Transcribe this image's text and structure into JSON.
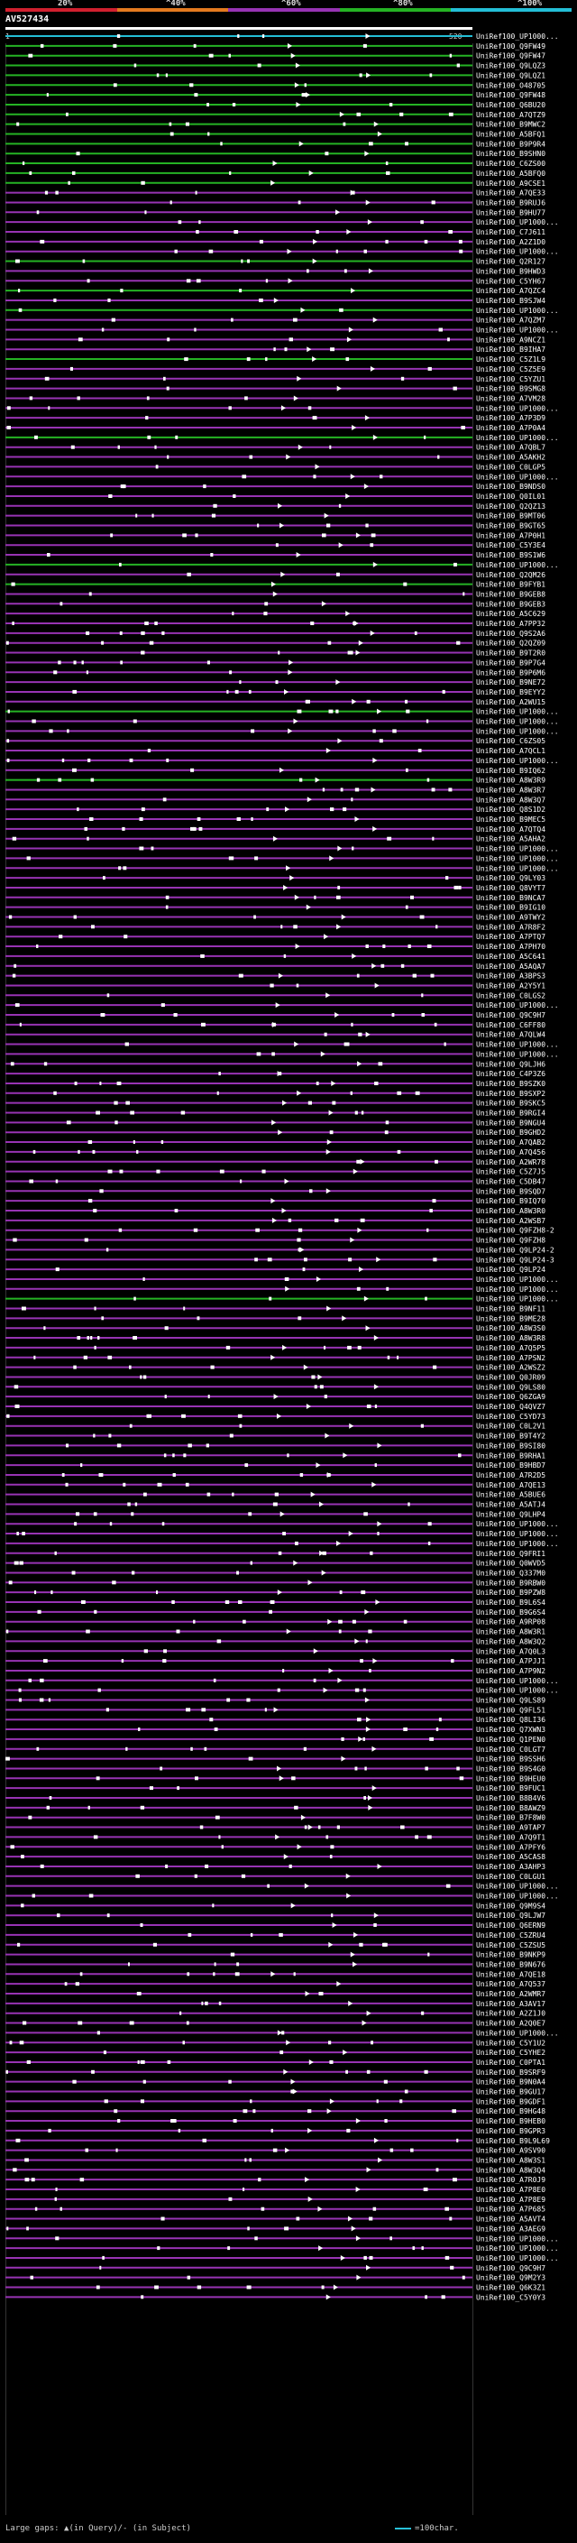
{
  "scale": {
    "labels": [
      "20%",
      "^40%",
      "^60%",
      "^80%",
      "^100%"
    ],
    "colors": [
      "#d1202f",
      "#e47a1f",
      "#9733b3",
      "#25b324",
      "#23bed6"
    ]
  },
  "query": {
    "title": "AV527434",
    "start": "1",
    "end": "520"
  },
  "footer": {
    "text": "Large gaps: ▲(in Query)/- (in Subject)",
    "scale_text": "=100char."
  },
  "chart_data": {
    "type": "alignment-overview",
    "title": "AV527434",
    "query_length": 520,
    "identity_bins": [
      {
        "label": "20%",
        "color": "#d1202f"
      },
      {
        "label": "^40%",
        "color": "#e47a1f"
      },
      {
        "label": "^60%",
        "color": "#9733b3"
      },
      {
        "label": "^80%",
        "color": "#25b324"
      },
      {
        "label": "^100%",
        "color": "#23bed6"
      }
    ],
    "hits": [
      {
        "label": "UniRef100_UP1000...",
        "bin": 4
      },
      {
        "label": "UniRef100_Q9FW49",
        "bin": 3
      },
      {
        "label": "UniRef100_Q9FW47",
        "bin": 3
      },
      {
        "label": "UniRef100_Q9LQZ3",
        "bin": 3
      },
      {
        "label": "UniRef100_Q9LQZ1",
        "bin": 3
      },
      {
        "label": "UniRef100_O48705",
        "bin": 3
      },
      {
        "label": "UniRef100_Q9FW48",
        "bin": 3
      },
      {
        "label": "UniRef100_Q6BU20",
        "bin": 3
      },
      {
        "label": "UniRef100_A7QTZ9",
        "bin": 3
      },
      {
        "label": "UniRef100_B9MWC2",
        "bin": 3
      },
      {
        "label": "UniRef100_A5BFQ1",
        "bin": 3
      },
      {
        "label": "UniRef100_B9P9R4",
        "bin": 3
      },
      {
        "label": "UniRef100_B9SHN0",
        "bin": 3
      },
      {
        "label": "UniRef100_C6ZS00",
        "bin": 3
      },
      {
        "label": "UniRef100_A5BFQ0",
        "bin": 3
      },
      {
        "label": "UniRef100_A9CSE1",
        "bin": 3
      },
      {
        "label": "UniRef100_A7QE33",
        "bin": 2
      },
      {
        "label": "UniRef100_B9RUJ6",
        "bin": 2
      },
      {
        "label": "UniRef100_B9HU77",
        "bin": 2
      },
      {
        "label": "UniRef100_UP1000...",
        "bin": 2
      },
      {
        "label": "UniRef100_C7J611",
        "bin": 2
      },
      {
        "label": "UniRef100_A2Z1D0",
        "bin": 2
      },
      {
        "label": "UniRef100_UP1000...",
        "bin": 2
      },
      {
        "label": "UniRef100_Q2R127",
        "bin": 3
      },
      {
        "label": "UniRef100_B9HWD3",
        "bin": 2
      },
      {
        "label": "UniRef100_C5YH67",
        "bin": 2
      },
      {
        "label": "UniRef100_A7QZC4",
        "bin": 3
      },
      {
        "label": "UniRef100_B9SJW4",
        "bin": 2
      },
      {
        "label": "UniRef100_UP1000...",
        "bin": 3
      },
      {
        "label": "UniRef100_A7QZM7",
        "bin": 2
      },
      {
        "label": "UniRef100_UP1000...",
        "bin": 2
      },
      {
        "label": "UniRef100_A9NCZ1",
        "bin": 2
      },
      {
        "label": "UniRef100_B9IHA7",
        "bin": 2
      },
      {
        "label": "UniRef100_C5Z1L9",
        "bin": 3
      },
      {
        "label": "UniRef100_C5Z5E9",
        "bin": 2
      },
      {
        "label": "UniRef100_C5YZU1",
        "bin": 2
      },
      {
        "label": "UniRef100_B9SMG8",
        "bin": 2
      },
      {
        "label": "UniRef100_A7VM28",
        "bin": 2
      },
      {
        "label": "UniRef100_UP1000...",
        "bin": 2
      },
      {
        "label": "UniRef100_A7P3D9",
        "bin": 2
      },
      {
        "label": "UniRef100_A7P0A4",
        "bin": 2
      },
      {
        "label": "UniRef100_UP1000...",
        "bin": 3
      },
      {
        "label": "UniRef100_A7QBL7",
        "bin": 2
      },
      {
        "label": "UniRef100_A5AKH2",
        "bin": 2
      },
      {
        "label": "UniRef100_C0LGP5",
        "bin": 2
      },
      {
        "label": "UniRef100_UP1000...",
        "bin": 2
      },
      {
        "label": "UniRef100_B9NDS0",
        "bin": 2
      },
      {
        "label": "UniRef100_Q0IL01",
        "bin": 2
      },
      {
        "label": "UniRef100_Q2QZ13",
        "bin": 2
      },
      {
        "label": "UniRef100_B9MT06",
        "bin": 2
      },
      {
        "label": "UniRef100_B9GT65",
        "bin": 2
      },
      {
        "label": "UniRef100_A7P0H1",
        "bin": 2
      },
      {
        "label": "UniRef100_C5Y3E4",
        "bin": 2
      },
      {
        "label": "UniRef100_B9S1W6",
        "bin": 2
      },
      {
        "label": "UniRef100_UP1000...",
        "bin": 3
      },
      {
        "label": "UniRef100_Q2QM26",
        "bin": 2
      },
      {
        "label": "UniRef100_B9FYB1",
        "bin": 3
      },
      {
        "label": "UniRef100_B9GEB8",
        "bin": 2
      },
      {
        "label": "UniRef100_B9GEB3",
        "bin": 2
      },
      {
        "label": "UniRef100_A5C629",
        "bin": 2
      },
      {
        "label": "UniRef100_A7PP32",
        "bin": 2
      },
      {
        "label": "UniRef100_Q9S2A6",
        "bin": 2
      },
      {
        "label": "UniRef100_Q2QZ09",
        "bin": 2
      },
      {
        "label": "UniRef100_B9T2R0",
        "bin": 2
      },
      {
        "label": "UniRef100_B9P7G4",
        "bin": 2
      },
      {
        "label": "UniRef100_B9P6M6",
        "bin": 2
      },
      {
        "label": "UniRef100_B9NE72",
        "bin": 2
      },
      {
        "label": "UniRef100_B9EYY2",
        "bin": 2
      },
      {
        "label": "UniRef100_A2WU15",
        "bin": 2
      },
      {
        "label": "UniRef100_UP1000...",
        "bin": 3
      },
      {
        "label": "UniRef100_UP1000...",
        "bin": 2
      },
      {
        "label": "UniRef100_UP1000...",
        "bin": 2
      },
      {
        "label": "UniRef100_C6ZS05",
        "bin": 2
      },
      {
        "label": "UniRef100_A7QCL1",
        "bin": 2
      },
      {
        "label": "UniRef100_UP1000...",
        "bin": 2
      },
      {
        "label": "UniRef100_B9IQ62",
        "bin": 2
      },
      {
        "label": "UniRef100_A8W3R9",
        "bin": 3
      },
      {
        "label": "UniRef100_A8W3R7",
        "bin": 2
      },
      {
        "label": "UniRef100_A8W3Q7",
        "bin": 2
      },
      {
        "label": "UniRef100_Q8S1D2",
        "bin": 2
      },
      {
        "label": "UniRef100_B9MEC5",
        "bin": 2
      },
      {
        "label": "UniRef100_A7QTQ4",
        "bin": 2
      },
      {
        "label": "UniRef100_A5AHA2",
        "bin": 2
      },
      {
        "label": "UniRef100_UP1000...",
        "bin": 2
      },
      {
        "label": "UniRef100_UP1000...",
        "bin": 2
      },
      {
        "label": "UniRef100_UP1000...",
        "bin": 2
      },
      {
        "label": "UniRef100_Q9LY03",
        "bin": 2
      },
      {
        "label": "UniRef100_Q8VYT7",
        "bin": 2
      },
      {
        "label": "UniRef100_B9NCA7",
        "bin": 2
      },
      {
        "label": "UniRef100_B9IG10",
        "bin": 2
      },
      {
        "label": "UniRef100_A9TWY2",
        "bin": 2
      },
      {
        "label": "UniRef100_A7R8F2",
        "bin": 2
      },
      {
        "label": "UniRef100_A7PTQ7",
        "bin": 2
      },
      {
        "label": "UniRef100_A7PH70",
        "bin": 2
      },
      {
        "label": "UniRef100_A5C641",
        "bin": 2
      },
      {
        "label": "UniRef100_A5AQA7",
        "bin": 2
      },
      {
        "label": "UniRef100_A3BPS3",
        "bin": 2
      },
      {
        "label": "UniRef100_A2Y5Y1",
        "bin": 2
      },
      {
        "label": "UniRef100_C0LGS2",
        "bin": 2
      },
      {
        "label": "UniRef100_UP1000...",
        "bin": 2
      },
      {
        "label": "UniRef100_Q9C9H7",
        "bin": 2
      },
      {
        "label": "UniRef100_C6FF80",
        "bin": 2
      },
      {
        "label": "UniRef100_A7QLW4",
        "bin": 2
      },
      {
        "label": "UniRef100_UP1000...",
        "bin": 2
      },
      {
        "label": "UniRef100_UP1000...",
        "bin": 2
      },
      {
        "label": "UniRef100_Q9LJH6",
        "bin": 2
      },
      {
        "label": "UniRef100_C4P3Z6",
        "bin": 2
      },
      {
        "label": "UniRef100_B9SZK0",
        "bin": 2
      },
      {
        "label": "UniRef100_B9SXP2",
        "bin": 2
      },
      {
        "label": "UniRef100_B9SKC5",
        "bin": 2
      },
      {
        "label": "UniRef100_B9RGI4",
        "bin": 2
      },
      {
        "label": "UniRef100_B9NGU4",
        "bin": 2
      },
      {
        "label": "UniRef100_B9GHD2",
        "bin": 2
      },
      {
        "label": "UniRef100_A7QAB2",
        "bin": 2
      },
      {
        "label": "UniRef100_A7Q456",
        "bin": 2
      },
      {
        "label": "UniRef100_A2WR78",
        "bin": 2
      },
      {
        "label": "UniRef100_C5Z7J5",
        "bin": 2
      },
      {
        "label": "UniRef100_C5DB47",
        "bin": 2
      },
      {
        "label": "UniRef100_B9SQD7",
        "bin": 2
      },
      {
        "label": "UniRef100_B9IQ70",
        "bin": 2
      },
      {
        "label": "UniRef100_A8W3R0",
        "bin": 2
      },
      {
        "label": "UniRef100_A2WSB7",
        "bin": 2
      },
      {
        "label": "UniRef100_Q9FZH8-2",
        "bin": 2
      },
      {
        "label": "UniRef100_Q9FZH8",
        "bin": 2
      },
      {
        "label": "UniRef100_Q9LP24-2",
        "bin": 2
      },
      {
        "label": "UniRef100_Q9LP24-3",
        "bin": 2
      },
      {
        "label": "UniRef100_Q9LP24",
        "bin": 2
      },
      {
        "label": "UniRef100_UP1000...",
        "bin": 2
      },
      {
        "label": "UniRef100_UP1000...",
        "bin": 2
      },
      {
        "label": "UniRef100_UP1000...",
        "bin": 3
      },
      {
        "label": "UniRef100_B9NF11",
        "bin": 2
      },
      {
        "label": "UniRef100_B9ME28",
        "bin": 2
      },
      {
        "label": "UniRef100_A8W3S0",
        "bin": 2
      },
      {
        "label": "UniRef100_A8W3R8",
        "bin": 2
      },
      {
        "label": "UniRef100_A7Q5P5",
        "bin": 2
      },
      {
        "label": "UniRef100_A7PSN2",
        "bin": 2
      },
      {
        "label": "UniRef100_A2WSZ2",
        "bin": 2
      },
      {
        "label": "UniRef100_Q0JR09",
        "bin": 2
      },
      {
        "label": "UniRef100_Q9LS80",
        "bin": 2
      },
      {
        "label": "UniRef100_Q6ZGA9",
        "bin": 2
      },
      {
        "label": "UniRef100_Q4QVZ7",
        "bin": 2
      },
      {
        "label": "UniRef100_C5YD73",
        "bin": 2
      },
      {
        "label": "UniRef100_C0L2V1",
        "bin": 2
      },
      {
        "label": "UniRef100_B9T4Y2",
        "bin": 2
      },
      {
        "label": "UniRef100_B9SI80",
        "bin": 2
      },
      {
        "label": "UniRef100_B9RHA1",
        "bin": 2
      },
      {
        "label": "UniRef100_B9HBD7",
        "bin": 2
      },
      {
        "label": "UniRef100_A7R2D5",
        "bin": 2
      },
      {
        "label": "UniRef100_A7QE13",
        "bin": 2
      },
      {
        "label": "UniRef100_A5BUE6",
        "bin": 2
      },
      {
        "label": "UniRef100_A5ATJ4",
        "bin": 2
      },
      {
        "label": "UniRef100_Q9LHP4",
        "bin": 2
      },
      {
        "label": "UniRef100_UP1000...",
        "bin": 2
      },
      {
        "label": "UniRef100_UP1000...",
        "bin": 2
      },
      {
        "label": "UniRef100_UP1000...",
        "bin": 2
      },
      {
        "label": "UniRef100_Q9FRI1",
        "bin": 2
      },
      {
        "label": "UniRef100_Q0WVD5",
        "bin": 2
      },
      {
        "label": "UniRef100_Q337M0",
        "bin": 2
      },
      {
        "label": "UniRef100_B9RBW0",
        "bin": 2
      },
      {
        "label": "UniRef100_B9PZW8",
        "bin": 2
      },
      {
        "label": "UniRef100_B9L6S4",
        "bin": 2
      },
      {
        "label": "UniRef100_B9G6S4",
        "bin": 2
      },
      {
        "label": "UniRef100_A9RP08",
        "bin": 2
      },
      {
        "label": "UniRef100_A8W3R1",
        "bin": 2
      },
      {
        "label": "UniRef100_A8W3Q2",
        "bin": 2
      },
      {
        "label": "UniRef100_A7Q0L3",
        "bin": 2
      },
      {
        "label": "UniRef100_A7PJJ1",
        "bin": 2
      },
      {
        "label": "UniRef100_A7P9N2",
        "bin": 2
      },
      {
        "label": "UniRef100_UP1000...",
        "bin": 2
      },
      {
        "label": "UniRef100_UP1000...",
        "bin": 2
      },
      {
        "label": "UniRef100_Q9LS89",
        "bin": 2
      },
      {
        "label": "UniRef100_Q9FL51",
        "bin": 2
      },
      {
        "label": "UniRef100_Q8LI36",
        "bin": 2
      },
      {
        "label": "UniRef100_Q7XWN3",
        "bin": 2
      },
      {
        "label": "UniRef100_Q1PEN0",
        "bin": 2
      },
      {
        "label": "UniRef100_C0LGT7",
        "bin": 2
      },
      {
        "label": "UniRef100_B9SSH6",
        "bin": 2
      },
      {
        "label": "UniRef100_B9S4G0",
        "bin": 2
      },
      {
        "label": "UniRef100_B9HEU0",
        "bin": 2
      },
      {
        "label": "UniRef100_B9FUC1",
        "bin": 2
      },
      {
        "label": "UniRef100_B8B4V6",
        "bin": 2
      },
      {
        "label": "UniRef100_B8AWZ9",
        "bin": 2
      },
      {
        "label": "UniRef100_B7F8W0",
        "bin": 2
      },
      {
        "label": "UniRef100_A9TAP7",
        "bin": 2
      },
      {
        "label": "UniRef100_A7Q9T1",
        "bin": 2
      },
      {
        "label": "UniRef100_A7PFY6",
        "bin": 2
      },
      {
        "label": "UniRef100_A5CAS8",
        "bin": 2
      },
      {
        "label": "UniRef100_A3AHP3",
        "bin": 2
      },
      {
        "label": "UniRef100_C0LGU1",
        "bin": 2
      },
      {
        "label": "UniRef100_UP1000...",
        "bin": 2
      },
      {
        "label": "UniRef100_UP1000...",
        "bin": 2
      },
      {
        "label": "UniRef100_Q9M9S4",
        "bin": 2
      },
      {
        "label": "UniRef100_Q9LJW7",
        "bin": 2
      },
      {
        "label": "UniRef100_Q6ERN9",
        "bin": 2
      },
      {
        "label": "UniRef100_C5ZRU4",
        "bin": 2
      },
      {
        "label": "UniRef100_C5ZSU5",
        "bin": 2
      },
      {
        "label": "UniRef100_B9NKP9",
        "bin": 2
      },
      {
        "label": "UniRef100_B9N676",
        "bin": 2
      },
      {
        "label": "UniRef100_A7QE18",
        "bin": 2
      },
      {
        "label": "UniRef100_A7Q537",
        "bin": 2
      },
      {
        "label": "UniRef100_A2WMR7",
        "bin": 2
      },
      {
        "label": "UniRef100_A3AV17",
        "bin": 2
      },
      {
        "label": "UniRef100_A2Z1J0",
        "bin": 2
      },
      {
        "label": "UniRef100_A2Q0E7",
        "bin": 2
      },
      {
        "label": "UniRef100_UP1000...",
        "bin": 2
      },
      {
        "label": "UniRef100_C5Y1U2",
        "bin": 2
      },
      {
        "label": "UniRef100_C5YHE2",
        "bin": 2
      },
      {
        "label": "UniRef100_C0PTA1",
        "bin": 2
      },
      {
        "label": "UniRef100_B9SRF9",
        "bin": 2
      },
      {
        "label": "UniRef100_B9N0A4",
        "bin": 2
      },
      {
        "label": "UniRef100_B9GU17",
        "bin": 2
      },
      {
        "label": "UniRef100_B9GDF1",
        "bin": 2
      },
      {
        "label": "UniRef100_B9HG48",
        "bin": 2
      },
      {
        "label": "UniRef100_B9HEB0",
        "bin": 2
      },
      {
        "label": "UniRef100_B9GPR3",
        "bin": 2
      },
      {
        "label": "UniRef100_B9L9L69",
        "bin": 2
      },
      {
        "label": "UniRef100_A9SV90",
        "bin": 2
      },
      {
        "label": "UniRef100_A8W3S1",
        "bin": 2
      },
      {
        "label": "UniRef100_A8W3Q4",
        "bin": 2
      },
      {
        "label": "UniRef100_A7R0J9",
        "bin": 2
      },
      {
        "label": "UniRef100_A7P8E0",
        "bin": 2
      },
      {
        "label": "UniRef100_A7P8E9",
        "bin": 2
      },
      {
        "label": "UniRef100_A7P685",
        "bin": 2
      },
      {
        "label": "UniRef100_A5AVT4",
        "bin": 2
      },
      {
        "label": "UniRef100_A3AEG9",
        "bin": 2
      },
      {
        "label": "UniRef100_UP1000...",
        "bin": 2
      },
      {
        "label": "UniRef100_UP1000...",
        "bin": 2
      },
      {
        "label": "UniRef100_UP1000...",
        "bin": 2
      },
      {
        "label": "UniRef100_Q9C9H7",
        "bin": 2
      },
      {
        "label": "UniRef100_Q9M2Y3",
        "bin": 2
      },
      {
        "label": "UniRef100_Q6K3Z1",
        "bin": 2
      },
      {
        "label": "UniRef100_C5Y0Y3",
        "bin": 2
      }
    ]
  }
}
